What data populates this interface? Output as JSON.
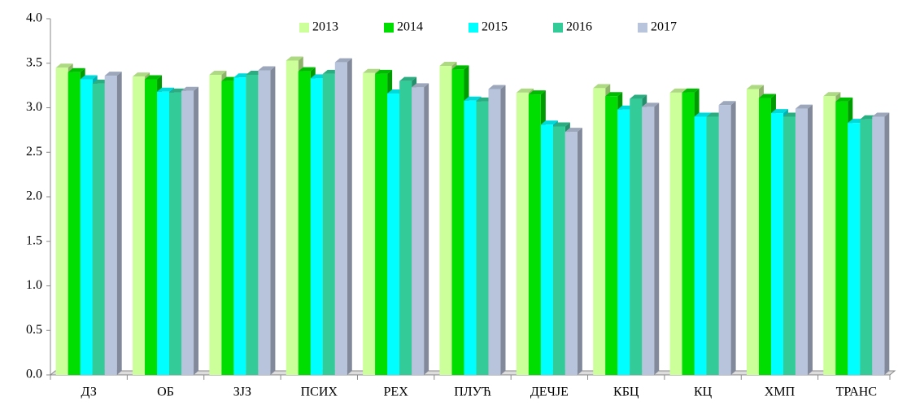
{
  "chart_data": {
    "type": "bar3d",
    "categories": [
      "ДЗ",
      "ОБ",
      "ЗЈЗ",
      "ПСИХ",
      "РЕХ",
      "ПЛУЋ",
      "ДЕЧЈЕ",
      "КБЦ",
      "КЦ",
      "ХМП",
      "ТРАНС"
    ],
    "series": [
      {
        "name": "2013",
        "color": "#ccff99",
        "values": [
          3.45,
          3.35,
          3.37,
          3.53,
          3.39,
          3.47,
          3.17,
          3.22,
          3.17,
          3.21,
          3.13
        ]
      },
      {
        "name": "2014",
        "color": "#00dd00",
        "values": [
          3.4,
          3.32,
          3.3,
          3.41,
          3.38,
          3.43,
          3.15,
          3.13,
          3.17,
          3.11,
          3.07
        ]
      },
      {
        "name": "2015",
        "color": "#00ffff",
        "values": [
          3.32,
          3.18,
          3.34,
          3.33,
          3.16,
          3.08,
          2.81,
          2.98,
          2.9,
          2.94,
          2.83
        ]
      },
      {
        "name": "2016",
        "color": "#33cc99",
        "values": [
          3.27,
          3.17,
          3.37,
          3.38,
          3.3,
          3.07,
          2.79,
          3.1,
          2.9,
          2.9,
          2.87
        ]
      },
      {
        "name": "2017",
        "color": "#b8c4dc",
        "values": [
          3.36,
          3.19,
          3.42,
          3.51,
          3.23,
          3.21,
          2.73,
          3.01,
          3.03,
          2.99,
          2.9
        ]
      }
    ],
    "ylim": [
      0,
      4
    ],
    "yticks": [
      {
        "value": 0,
        "label": "0.0"
      },
      0.5,
      {
        "value": 1,
        "label": "1.0"
      },
      1.5,
      {
        "value": 2,
        "label": "2.0"
      },
      2.5,
      {
        "value": 3,
        "label": "3.0"
      },
      3.5,
      {
        "value": 4,
        "label": "4.0"
      }
    ],
    "grid": false,
    "legend": "top"
  }
}
